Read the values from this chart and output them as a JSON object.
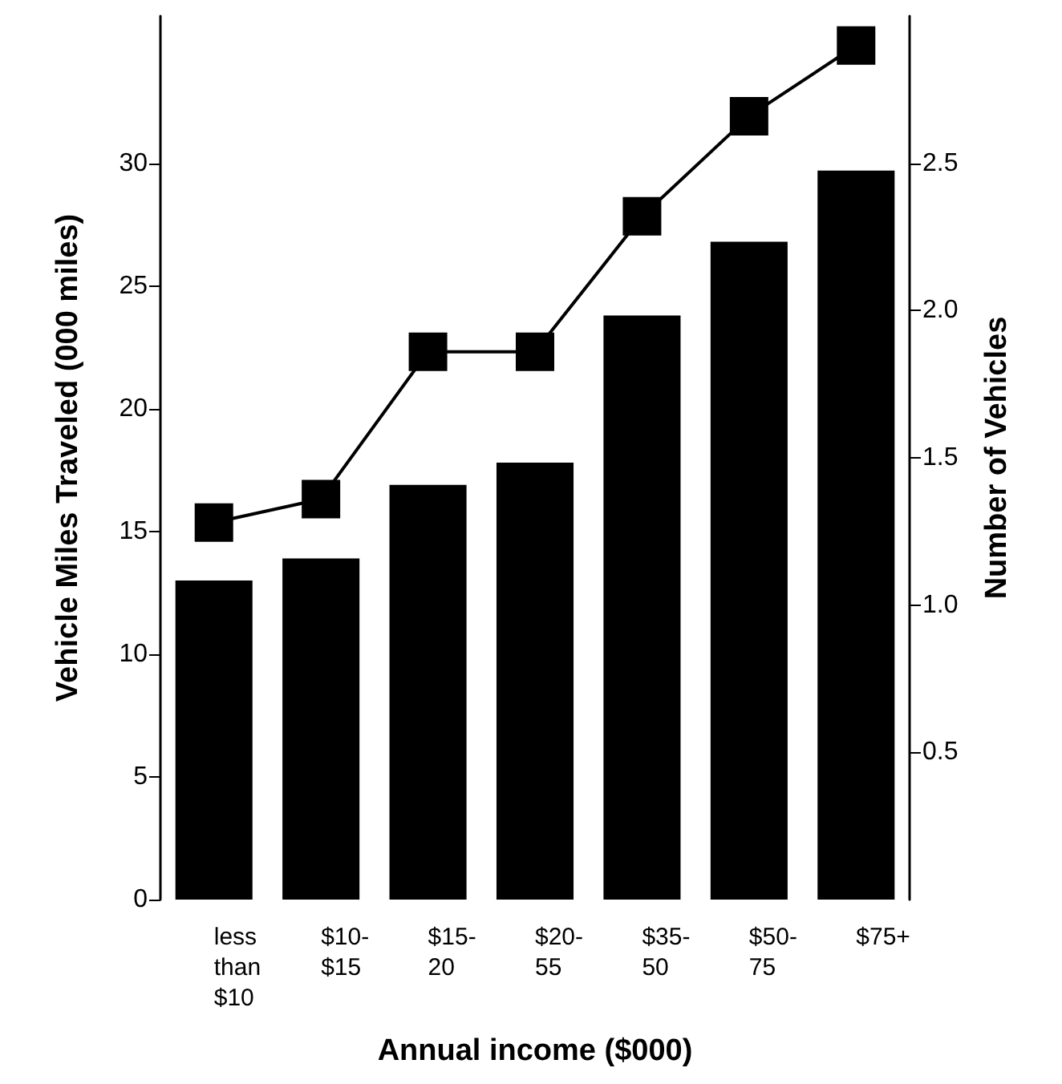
{
  "chart_data": {
    "type": "bar",
    "xlabel": "Annual income ($000)",
    "ylabel": "Vehicle Miles Traveled (000 miles)",
    "y2label": "Number of Vehicles",
    "categories": [
      "less than $10",
      "$10-$15",
      "$15-20",
      "$20-55",
      "$35-50",
      "$50-75",
      "$75+"
    ],
    "series": [
      {
        "color": "#000000",
        "values": [
          13,
          13.9,
          16.9,
          17.8,
          23.8,
          26.8,
          29.7
        ]
      },
      {
        "type": "line",
        "axis": "y2",
        "color": "#000000",
        "marker": "square",
        "values": [
          1.28,
          1.36,
          1.86,
          1.86,
          2.32,
          2.66,
          2.9
        ]
      }
    ],
    "ylim": [
      0,
      36
    ],
    "yticks": [
      0,
      5,
      10,
      15,
      20,
      25,
      30
    ],
    "y2lim": [
      0,
      3
    ],
    "y2ticks": [
      0.5,
      {
        "value": 1,
        "label": "1.0"
      },
      1.5,
      {
        "value": 2,
        "label": "2.0"
      },
      2.5
    ],
    "grid": false
  }
}
